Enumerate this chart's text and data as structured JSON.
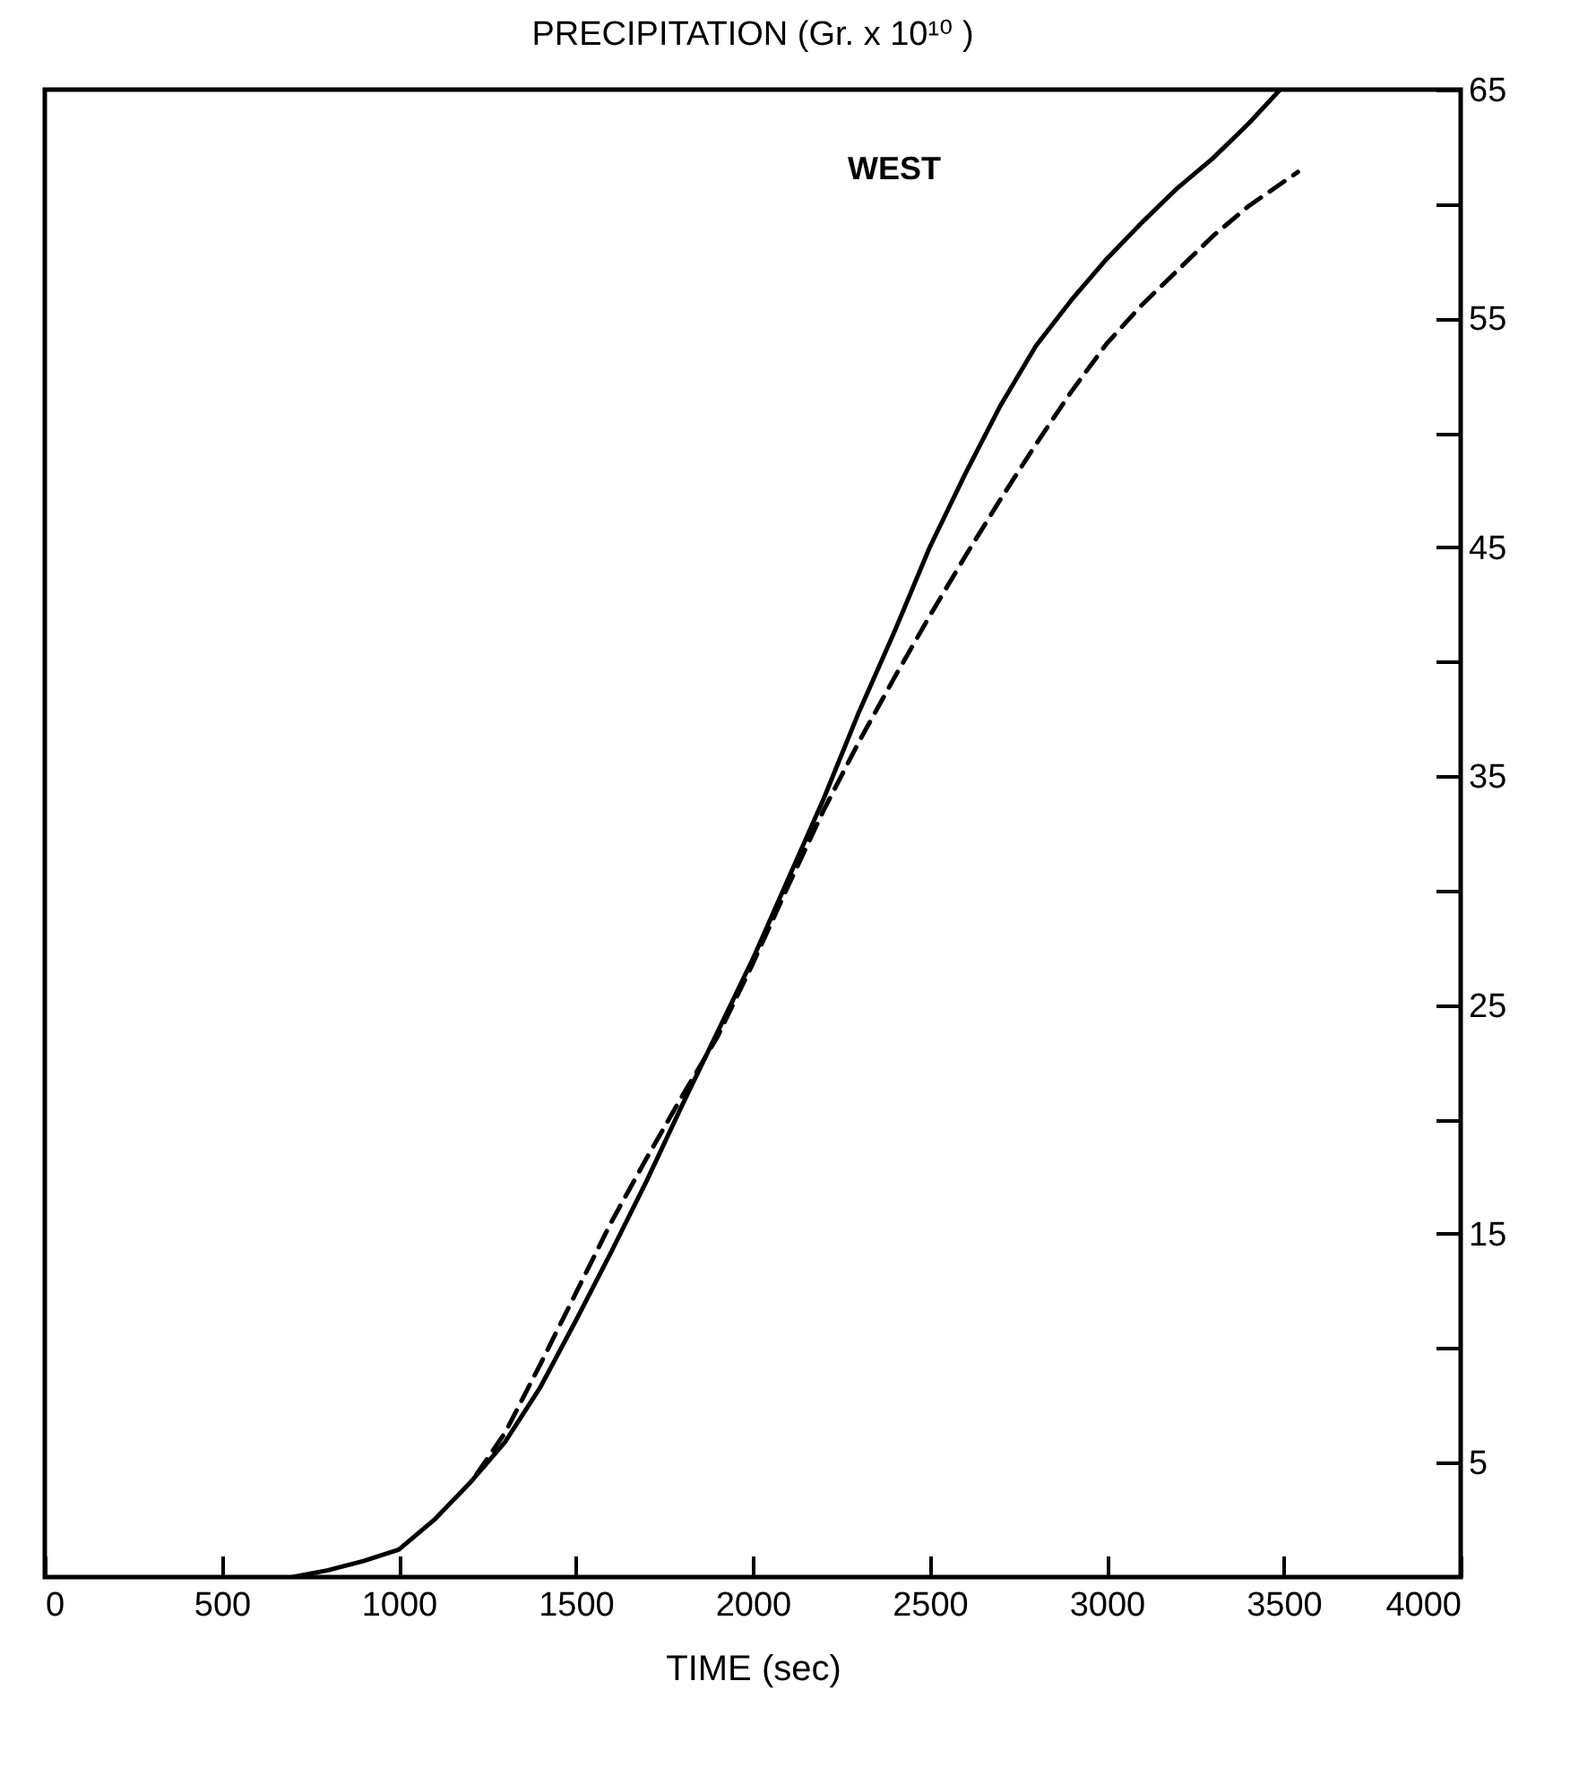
{
  "chart_data": {
    "type": "line",
    "title": "PRECIPITATION  (Gr. x 10¹⁰ )",
    "xlabel": "TIME  (sec)",
    "annotations": [
      "WEST"
    ],
    "xlim": [
      0,
      4000
    ],
    "xticks": [
      0,
      500,
      1000,
      1500,
      2000,
      2500,
      3000,
      3500,
      4000
    ],
    "ylim": [
      0,
      65
    ],
    "yticks": [
      5,
      {
        "value": 10,
        "label": null
      },
      15,
      {
        "value": 20,
        "label": null
      },
      25,
      {
        "value": 30,
        "label": null
      },
      35,
      {
        "value": 40,
        "label": null
      },
      45,
      {
        "value": 50,
        "label": null
      },
      55,
      {
        "value": 60,
        "label": null
      },
      65
    ],
    "grid": false,
    "marker": "none",
    "series": [
      {
        "color": "#000000",
        "line_style": "solid",
        "x": [
          700,
          800,
          900,
          1000,
          1100,
          1200,
          1300,
          1400,
          1500,
          1600,
          1700,
          1800,
          1900,
          2000,
          2100,
          2200,
          2300,
          2400,
          2500,
          2600,
          2700,
          2800,
          2900,
          3000,
          3100,
          3200,
          3300,
          3400,
          3490
        ],
        "values": [
          0,
          0.3,
          0.7,
          1.2,
          2.5,
          4.1,
          5.9,
          8.3,
          11.2,
          14.2,
          17.3,
          20.6,
          23.8,
          27,
          30.5,
          34,
          37.8,
          41.3,
          45,
          48.2,
          51.2,
          53.8,
          55.8,
          57.6,
          59.2,
          60.7,
          62,
          63.5,
          65
        ]
      },
      {
        "color": "#000000",
        "line_style": "dashed",
        "x": [
          1220,
          1300,
          1400,
          1500,
          1600,
          1700,
          1800,
          1900,
          2000,
          2100,
          2200,
          2300,
          2400,
          2500,
          2600,
          2700,
          2800,
          2900,
          3000,
          3100,
          3200,
          3300,
          3400,
          3540
        ],
        "values": [
          4.5,
          6.3,
          9.3,
          12.4,
          15.5,
          18.3,
          21,
          23.6,
          26.8,
          30.2,
          33.5,
          36.5,
          39.3,
          42,
          44.6,
          47.1,
          49.5,
          51.8,
          53.9,
          55.6,
          57.1,
          58.6,
          59.9,
          61.4
        ]
      }
    ]
  }
}
